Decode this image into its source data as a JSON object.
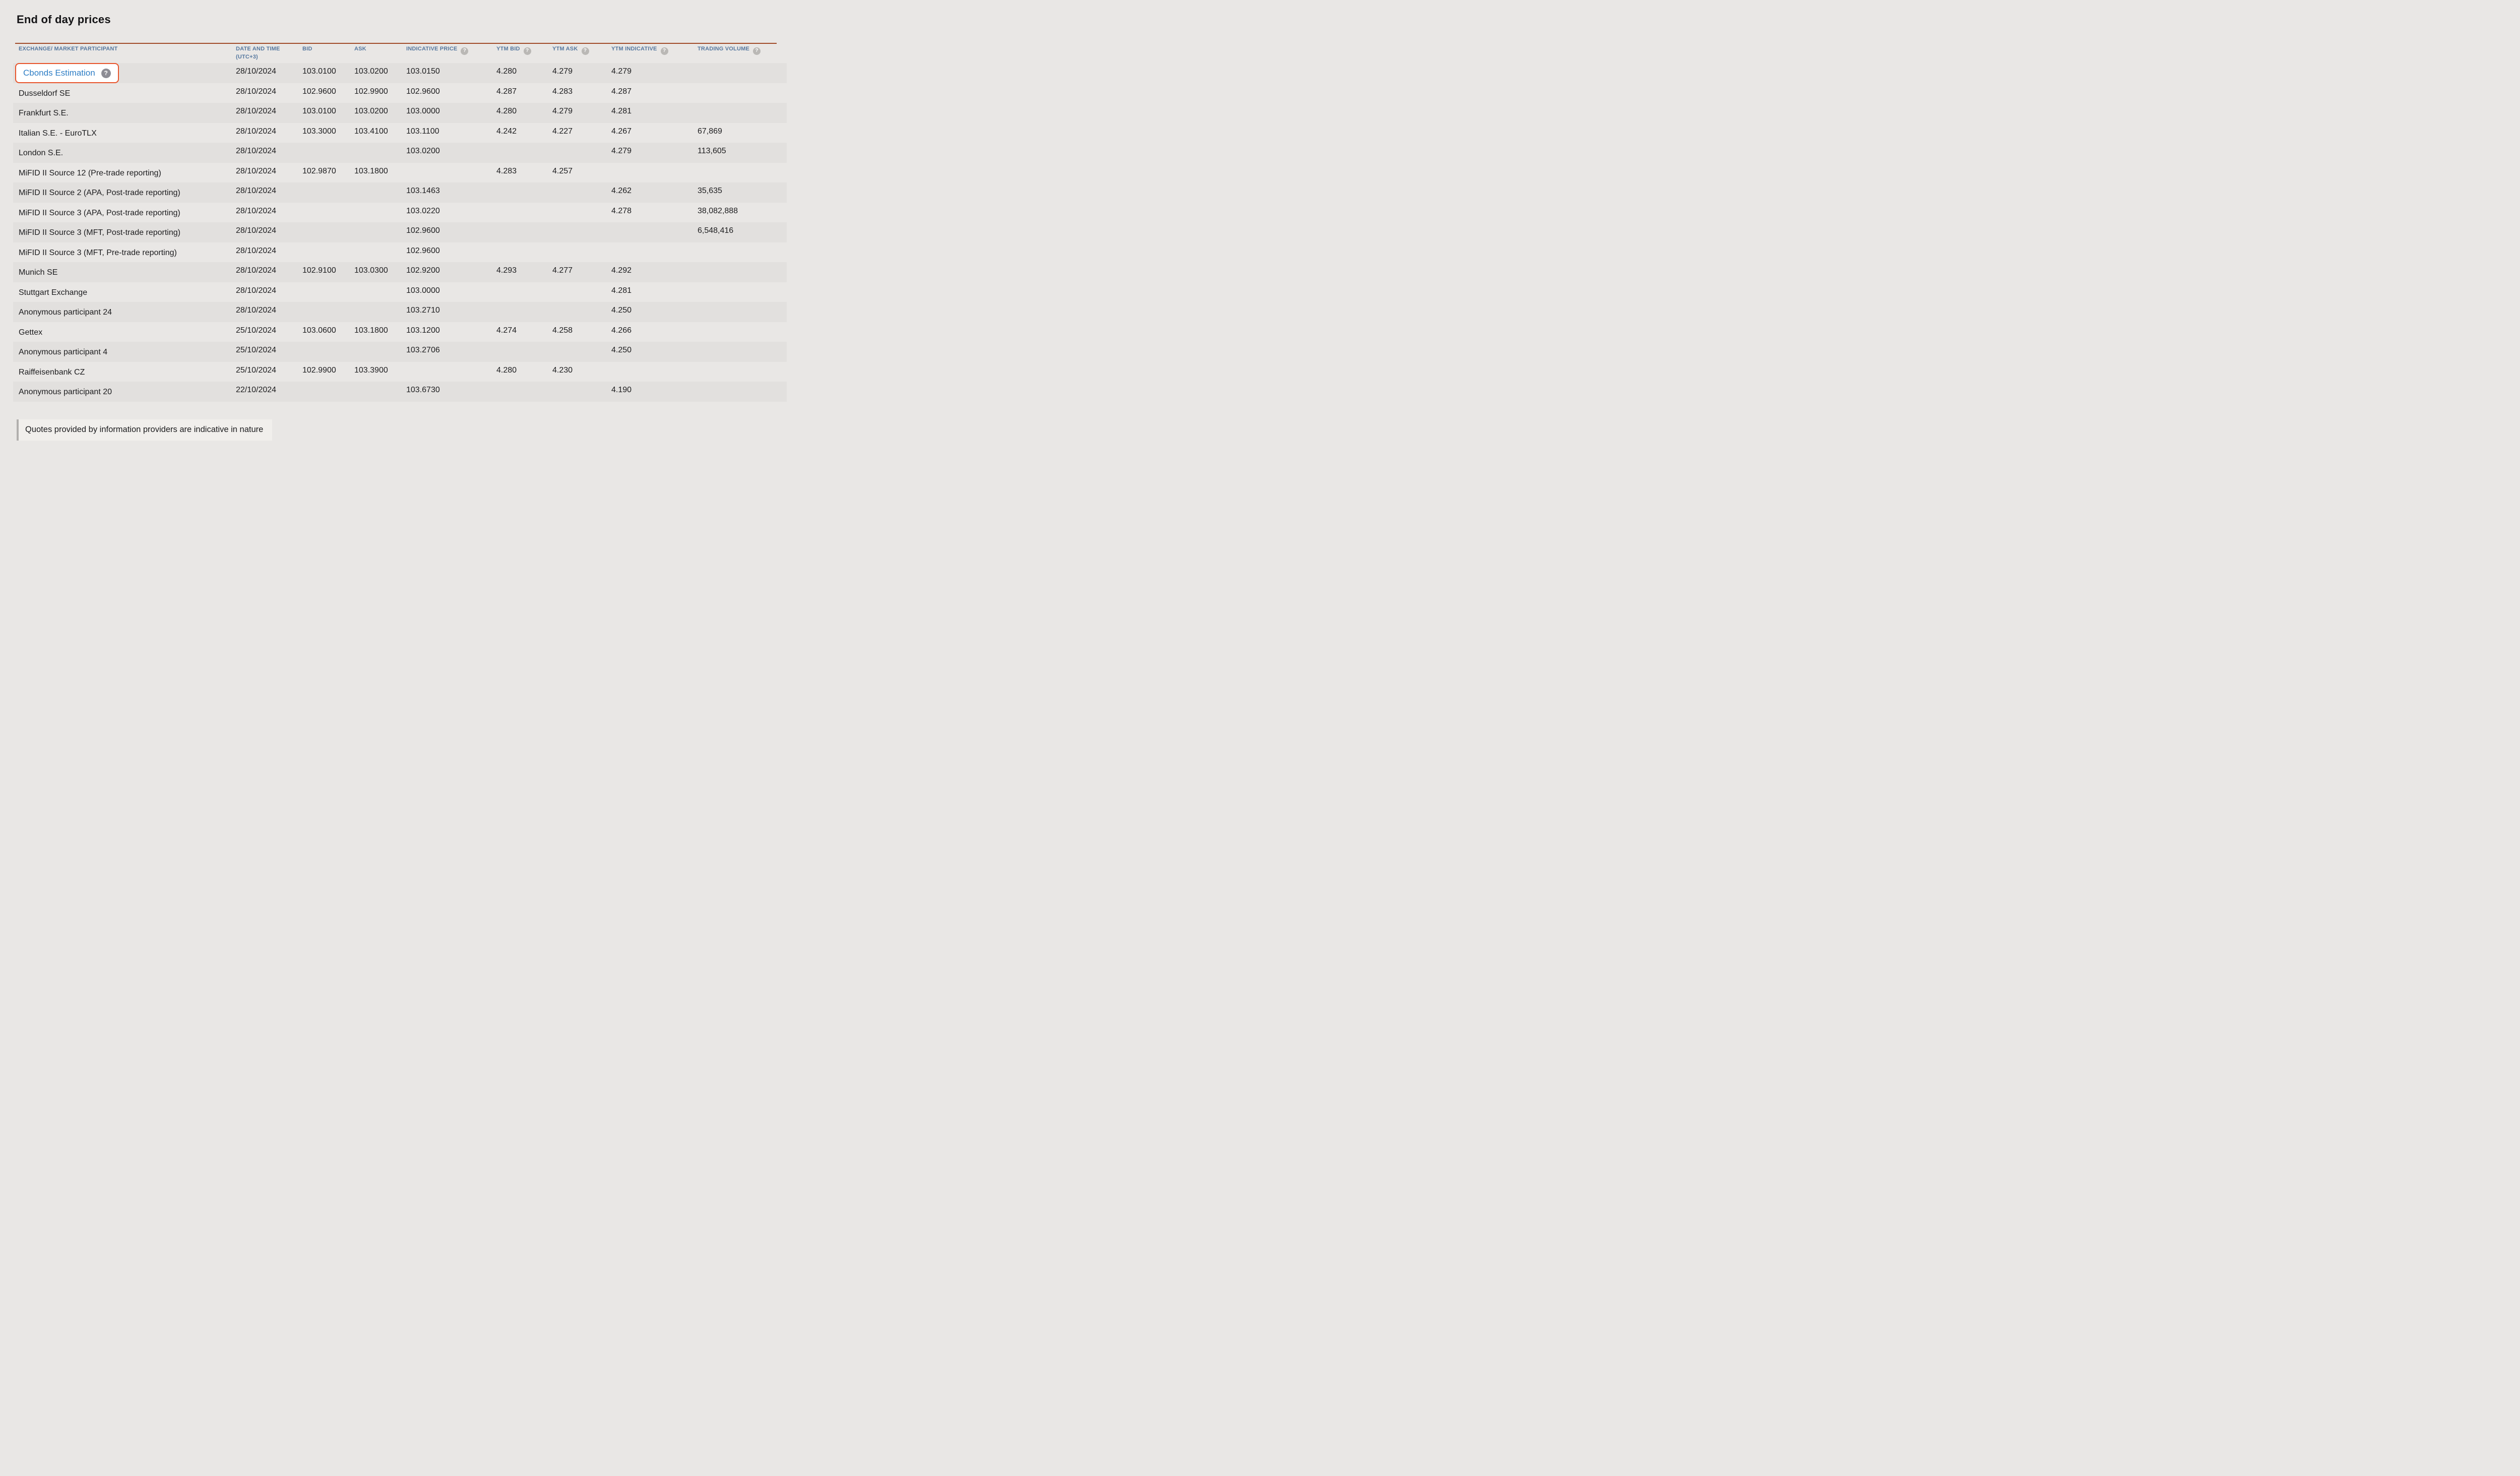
{
  "page": {
    "title": "End of day prices",
    "background_color": "#e9e7e5",
    "accent_line_color": "#a04b2a",
    "stripe_color": "#e2e0de"
  },
  "icons": {
    "help_glyph": "?"
  },
  "colors": {
    "header_text": "#56789f",
    "link_blue": "#2d7dc5",
    "highlight_border": "#e8542b",
    "header_help_icon": "#bab8b5",
    "cbonds_help_icon": "#8d8d95"
  },
  "table": {
    "columns": [
      {
        "key": "participant",
        "label": "EXCHANGE/ MARKET PARTICIPANT",
        "help": false
      },
      {
        "key": "date",
        "label": "DATE AND TIME (UTC+3)",
        "help": false
      },
      {
        "key": "bid",
        "label": "BID",
        "help": false
      },
      {
        "key": "ask",
        "label": "ASK",
        "help": false
      },
      {
        "key": "indicative",
        "label": "INDICATIVE PRICE",
        "help": true
      },
      {
        "key": "ytm_bid",
        "label": "YTM BID",
        "help": true
      },
      {
        "key": "ytm_ask",
        "label": "YTM ASK",
        "help": true
      },
      {
        "key": "ytm_indicative",
        "label": "YTM INDICATIVE",
        "help": true
      },
      {
        "key": "volume",
        "label": "TRADING VOLUME",
        "help": true
      }
    ],
    "rows": [
      {
        "participant": "Cbonds Estimation",
        "highlighted": true,
        "date": "28/10/2024",
        "bid": "103.0100",
        "ask": "103.0200",
        "indicative": "103.0150",
        "ytm_bid": "4.280",
        "ytm_ask": "4.279",
        "ytm_indicative": "4.279",
        "volume": ""
      },
      {
        "participant": "Dusseldorf SE",
        "highlighted": false,
        "date": "28/10/2024",
        "bid": "102.9600",
        "ask": "102.9900",
        "indicative": "102.9600",
        "ytm_bid": "4.287",
        "ytm_ask": "4.283",
        "ytm_indicative": "4.287",
        "volume": ""
      },
      {
        "participant": "Frankfurt S.E.",
        "highlighted": false,
        "date": "28/10/2024",
        "bid": "103.0100",
        "ask": "103.0200",
        "indicative": "103.0000",
        "ytm_bid": "4.280",
        "ytm_ask": "4.279",
        "ytm_indicative": "4.281",
        "volume": ""
      },
      {
        "participant": "Italian S.E. - EuroTLX",
        "highlighted": false,
        "date": "28/10/2024",
        "bid": "103.3000",
        "ask": "103.4100",
        "indicative": "103.1100",
        "ytm_bid": "4.242",
        "ytm_ask": "4.227",
        "ytm_indicative": "4.267",
        "volume": "67,869"
      },
      {
        "participant": "London S.E.",
        "highlighted": false,
        "date": "28/10/2024",
        "bid": "",
        "ask": "",
        "indicative": "103.0200",
        "ytm_bid": "",
        "ytm_ask": "",
        "ytm_indicative": "4.279",
        "volume": "113,605"
      },
      {
        "participant": "MiFID II Source 12 (Pre-trade reporting)",
        "highlighted": false,
        "date": "28/10/2024",
        "bid": "102.9870",
        "ask": "103.1800",
        "indicative": "",
        "ytm_bid": "4.283",
        "ytm_ask": "4.257",
        "ytm_indicative": "",
        "volume": ""
      },
      {
        "participant": "MiFID II Source 2 (APA, Post-trade reporting)",
        "highlighted": false,
        "date": "28/10/2024",
        "bid": "",
        "ask": "",
        "indicative": "103.1463",
        "ytm_bid": "",
        "ytm_ask": "",
        "ytm_indicative": "4.262",
        "volume": "35,635"
      },
      {
        "participant": "MiFID II Source 3 (APA, Post-trade reporting)",
        "highlighted": false,
        "date": "28/10/2024",
        "bid": "",
        "ask": "",
        "indicative": "103.0220",
        "ytm_bid": "",
        "ytm_ask": "",
        "ytm_indicative": "4.278",
        "volume": "38,082,888"
      },
      {
        "participant": "MiFID II Source 3 (MFT, Post-trade reporting)",
        "highlighted": false,
        "date": "28/10/2024",
        "bid": "",
        "ask": "",
        "indicative": "102.9600",
        "ytm_bid": "",
        "ytm_ask": "",
        "ytm_indicative": "",
        "volume": "6,548,416"
      },
      {
        "participant": "MiFID II Source 3 (MFT, Pre-trade reporting)",
        "highlighted": false,
        "date": "28/10/2024",
        "bid": "",
        "ask": "",
        "indicative": "102.9600",
        "ytm_bid": "",
        "ytm_ask": "",
        "ytm_indicative": "",
        "volume": ""
      },
      {
        "participant": "Munich SE",
        "highlighted": false,
        "date": "28/10/2024",
        "bid": "102.9100",
        "ask": "103.0300",
        "indicative": "102.9200",
        "ytm_bid": "4.293",
        "ytm_ask": "4.277",
        "ytm_indicative": "4.292",
        "volume": ""
      },
      {
        "participant": "Stuttgart Exchange",
        "highlighted": false,
        "date": "28/10/2024",
        "bid": "",
        "ask": "",
        "indicative": "103.0000",
        "ytm_bid": "",
        "ytm_ask": "",
        "ytm_indicative": "4.281",
        "volume": ""
      },
      {
        "participant": "Anonymous participant 24",
        "highlighted": false,
        "date": "28/10/2024",
        "bid": "",
        "ask": "",
        "indicative": "103.2710",
        "ytm_bid": "",
        "ytm_ask": "",
        "ytm_indicative": "4.250",
        "volume": ""
      },
      {
        "participant": "Gettex",
        "highlighted": false,
        "date": "25/10/2024",
        "bid": "103.0600",
        "ask": "103.1800",
        "indicative": "103.1200",
        "ytm_bid": "4.274",
        "ytm_ask": "4.258",
        "ytm_indicative": "4.266",
        "volume": ""
      },
      {
        "participant": "Anonymous participant 4",
        "highlighted": false,
        "date": "25/10/2024",
        "bid": "",
        "ask": "",
        "indicative": "103.2706",
        "ytm_bid": "",
        "ytm_ask": "",
        "ytm_indicative": "4.250",
        "volume": ""
      },
      {
        "participant": "Raiffeisenbank CZ",
        "highlighted": false,
        "date": "25/10/2024",
        "bid": "102.9900",
        "ask": "103.3900",
        "indicative": "",
        "ytm_bid": "4.280",
        "ytm_ask": "4.230",
        "ytm_indicative": "",
        "volume": ""
      },
      {
        "participant": "Anonymous participant 20",
        "highlighted": false,
        "date": "22/10/2024",
        "bid": "",
        "ask": "",
        "indicative": "103.6730",
        "ytm_bid": "",
        "ytm_ask": "",
        "ytm_indicative": "4.190",
        "volume": ""
      }
    ]
  },
  "footer": {
    "note": "Quotes provided by information providers are indicative in nature"
  }
}
